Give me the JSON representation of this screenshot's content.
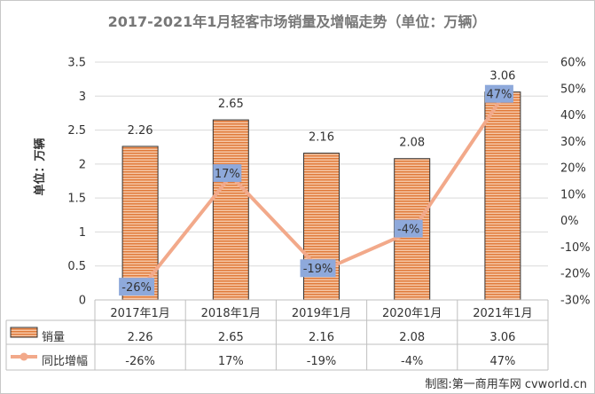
{
  "chart_data": {
    "type": "bar",
    "title": "2017-2021年1月轻客市场销量及增幅走势（单位：万辆）",
    "ylabel": "单位：万辆",
    "categories": [
      "2017年1月",
      "2018年1月",
      "2019年1月",
      "2020年1月",
      "2021年1月"
    ],
    "series": [
      {
        "name": "销量",
        "type": "bar",
        "axis": "left",
        "values": [
          2.26,
          2.65,
          2.16,
          2.08,
          3.06
        ],
        "labels": [
          "2.26",
          "2.65",
          "2.16",
          "2.08",
          "3.06"
        ],
        "color": "#E8834A"
      },
      {
        "name": "同比增幅",
        "type": "line",
        "axis": "right",
        "values": [
          -26,
          17,
          -19,
          -4,
          47
        ],
        "labels": [
          "-26%",
          "17%",
          "-19%",
          "-4%",
          "47%"
        ],
        "color": "#F2A98A"
      }
    ],
    "ylim": [
      0,
      3.5
    ],
    "yticks": [
      "0",
      "0.5",
      "1",
      "1.5",
      "2",
      "2.5",
      "3",
      "3.5"
    ],
    "y2lim": [
      -30,
      60
    ],
    "y2ticks": [
      "-30%",
      "-20%",
      "-10%",
      "0%",
      "10%",
      "20%",
      "30%",
      "40%",
      "50%",
      "60%"
    ],
    "data_table": true,
    "label_box_color": "#8EA9DB",
    "watermark": "制图:第一商用车网 cvworld.cn"
  }
}
